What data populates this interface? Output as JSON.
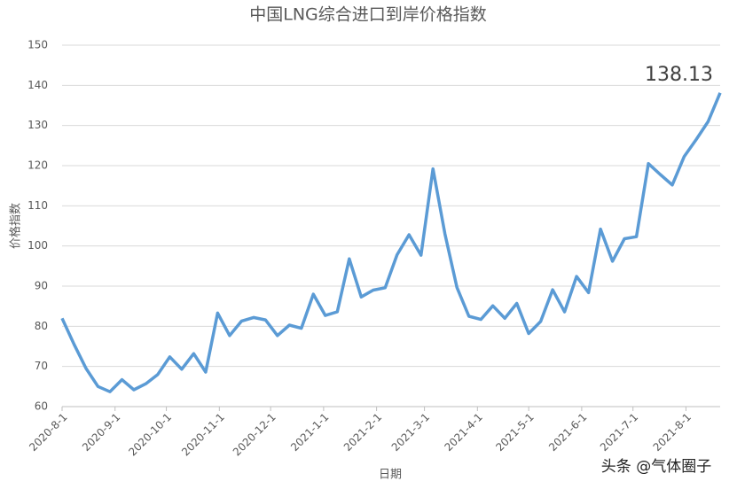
{
  "chart_data": {
    "type": "line",
    "title": "中国LNG综合进口到岸价格指数",
    "x_label": "日期",
    "y_label": "价格指数",
    "watermark": "头条 @气体圈子",
    "x": [
      "2020-8-1",
      "2020-8-8",
      "2020-8-15",
      "2020-8-22",
      "2020-8-29",
      "2020-9-5",
      "2020-9-12",
      "2020-9-19",
      "2020-9-26",
      "2020-10-3",
      "2020-10-10",
      "2020-10-17",
      "2020-10-24",
      "2020-10-31",
      "2020-11-7",
      "2020-11-14",
      "2020-11-21",
      "2020-11-28",
      "2020-12-5",
      "2020-12-12",
      "2020-12-19",
      "2020-12-26",
      "2021-1-2",
      "2021-1-9",
      "2021-1-16",
      "2021-1-23",
      "2021-1-30",
      "2021-2-6",
      "2021-2-13",
      "2021-2-20",
      "2021-2-27",
      "2021-3-6",
      "2021-3-13",
      "2021-3-20",
      "2021-3-27",
      "2021-4-3",
      "2021-4-10",
      "2021-4-17",
      "2021-4-24",
      "2021-5-1",
      "2021-5-8",
      "2021-5-15",
      "2021-5-22",
      "2021-5-29",
      "2021-6-5",
      "2021-6-12",
      "2021-6-19",
      "2021-6-26",
      "2021-7-3",
      "2021-7-10",
      "2021-7-17",
      "2021-7-24",
      "2021-7-31",
      "2021-8-7",
      "2021-8-14",
      "2021-8-21"
    ],
    "series": [
      {
        "name": "价格指数",
        "color": "#5b9bd5",
        "values": [
          82,
          75.5,
          69.5,
          65,
          63.7,
          66.7,
          64.2,
          65.7,
          68,
          72.4,
          69.3,
          73.2,
          68.6,
          83.3,
          77.7,
          81.3,
          82.2,
          81.6,
          77.7,
          80.3,
          79.5,
          88,
          82.7,
          83.6,
          96.8,
          87.3,
          89,
          89.6,
          97.8,
          102.8,
          97.7,
          119.2,
          103,
          89.7,
          82.5,
          81.7,
          85.1,
          82,
          85.7,
          78.2,
          81.2,
          89.1,
          83.6,
          92.4,
          88.4,
          104.2,
          96.2,
          101.8,
          102.3,
          120.5,
          117.8,
          115.2,
          122.3,
          126.5,
          131,
          138.13
        ]
      }
    ],
    "xlim": [
      "2020-8-1",
      "2021-8-21"
    ],
    "xticks": [
      "2020-8-1",
      "2020-9-1",
      "2020-10-1",
      "2020-11-1",
      "2020-12-1",
      "2021-1-1",
      "2021-2-1",
      "2021-3-1",
      "2021-4-1",
      "2021-5-1",
      "2021-6-1",
      "2021-7-1",
      "2021-8-1"
    ],
    "ylim": [
      60,
      150
    ],
    "yticks": [
      60,
      70,
      80,
      90,
      100,
      110,
      120,
      130,
      140,
      150
    ],
    "grid": true
  }
}
